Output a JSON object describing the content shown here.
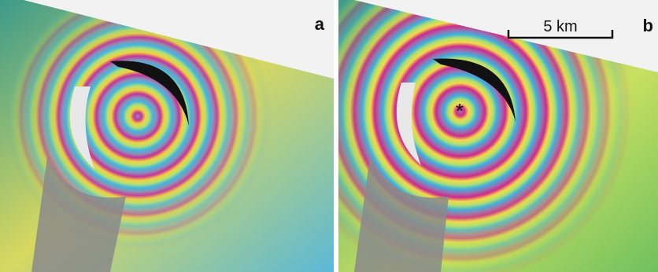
{
  "panels": [
    {
      "label": "a"
    },
    {
      "label": "b",
      "scale_bar": "5 km",
      "marker": "*"
    }
  ]
}
